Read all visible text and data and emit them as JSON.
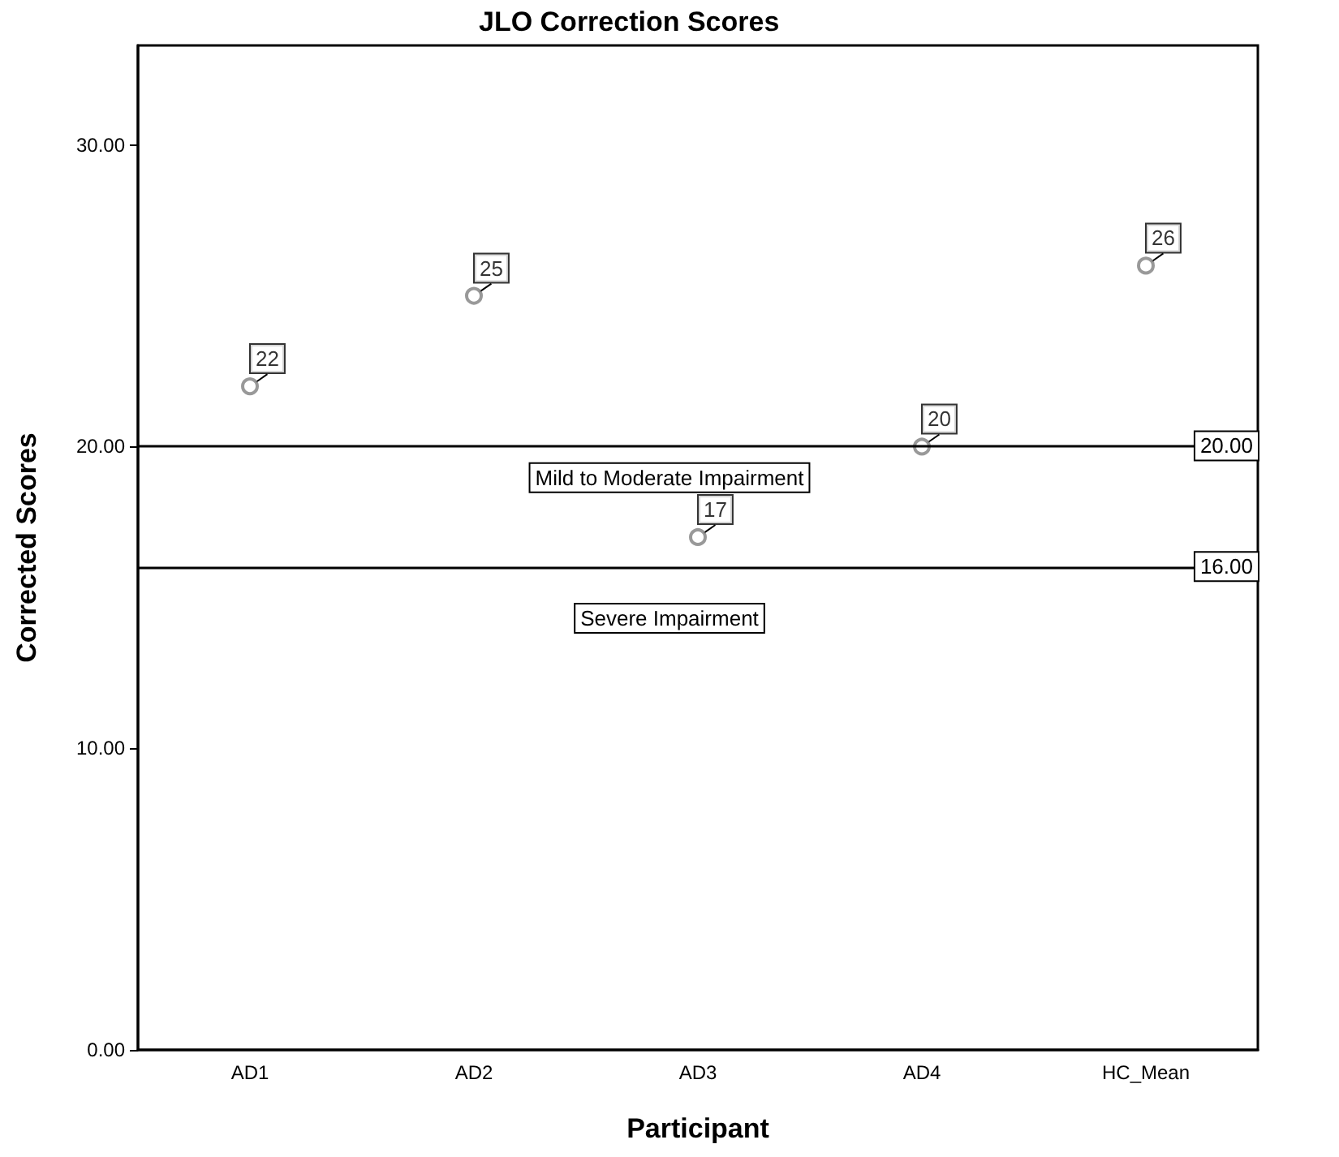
{
  "chart_data": {
    "type": "scatter",
    "title": "JLO Correction Scores",
    "xlabel": "Participant",
    "ylabel": "Corrected Scores",
    "categories": [
      "AD1",
      "AD2",
      "AD3",
      "AD4",
      "HC_Mean"
    ],
    "series": [
      {
        "color": "#808080",
        "values": [
          22,
          25,
          17,
          20,
          26
        ]
      }
    ],
    "data_labels": true,
    "marker": "circle",
    "grid": false,
    "ylim": [
      0,
      33.3
    ],
    "yticks": [
      {
        "value": 0,
        "label": "0.00"
      },
      {
        "value": 10,
        "label": "10.00"
      },
      {
        "value": 20,
        "label": "20.00"
      },
      {
        "value": 30,
        "label": "30.00"
      }
    ],
    "ref_lines": [
      {
        "axis": "y",
        "value": 20,
        "label": "20.00",
        "color": "#000000"
      },
      {
        "axis": "y",
        "value": 16,
        "label": "16.00",
        "color": "#000000"
      }
    ],
    "annotations": [
      "Mild to Moderate Impairment",
      "Severe Impairment"
    ]
  }
}
